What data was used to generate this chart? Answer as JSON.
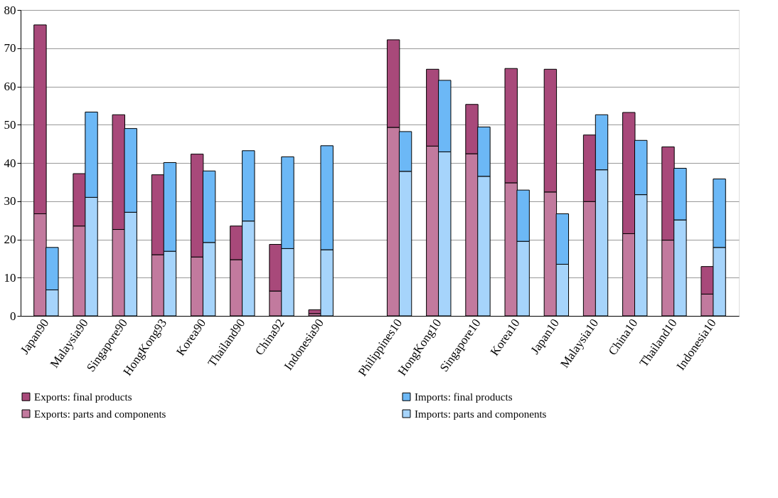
{
  "chart_data": {
    "type": "bar",
    "stacked": true,
    "categories": [
      "Japan90",
      null,
      "Malaysia90",
      null,
      "Singapore90",
      null,
      "HongKong93",
      null,
      "Korea90",
      null,
      "Thailand90",
      null,
      "China92",
      null,
      "Indonesia90",
      null,
      null,
      null,
      "Philippines10",
      null,
      "HongKong10",
      null,
      "Singapore10",
      null,
      "Korea10",
      null,
      "Japan10",
      null,
      "Malaysia10",
      null,
      "China10",
      null,
      "Thailand10",
      null,
      "Indonesia10",
      null
    ],
    "series": [
      {
        "name": "Exports: parts and components",
        "color": "#c27a9e",
        "values": [
          26.7,
          null,
          23.5,
          null,
          22.6,
          null,
          16.0,
          null,
          15.4,
          null,
          14.7,
          null,
          6.5,
          null,
          0.6,
          null,
          null,
          null,
          49.3,
          null,
          44.4,
          null,
          42.4,
          null,
          34.8,
          null,
          32.4,
          null,
          29.9,
          null,
          21.5,
          null,
          19.8,
          null,
          5.7,
          null
        ]
      },
      {
        "name": "Exports: final products",
        "color": "#a8497a",
        "values": [
          49.4,
          null,
          13.7,
          null,
          30.0,
          null,
          20.9,
          null,
          26.9,
          null,
          8.8,
          null,
          12.2,
          null,
          1.0,
          null,
          null,
          null,
          22.9,
          null,
          20.1,
          null,
          12.9,
          null,
          29.9,
          null,
          32.1,
          null,
          17.4,
          null,
          31.7,
          null,
          24.4,
          null,
          7.2,
          null
        ]
      },
      {
        "name": "Imports: parts and components",
        "color": "#a6d4fb",
        "values": [
          null,
          6.8,
          null,
          31.0,
          null,
          27.1,
          null,
          16.9,
          null,
          19.2,
          null,
          24.8,
          null,
          17.6,
          null,
          17.3,
          null,
          null,
          null,
          37.8,
          null,
          42.9,
          null,
          36.5,
          null,
          19.5,
          null,
          13.5,
          null,
          38.2,
          null,
          31.7,
          null,
          25.1,
          null,
          17.9
        ]
      },
      {
        "name": "Imports: final products",
        "color": "#6cb8f6",
        "values": [
          null,
          11.1,
          null,
          22.3,
          null,
          21.9,
          null,
          23.2,
          null,
          18.7,
          null,
          18.4,
          null,
          24.0,
          null,
          27.2,
          null,
          null,
          null,
          10.4,
          null,
          18.7,
          null,
          12.9,
          null,
          13.4,
          null,
          13.2,
          null,
          14.4,
          null,
          14.2,
          null,
          13.5,
          null,
          17.9
        ]
      }
    ],
    "ylim": [
      0,
      80
    ],
    "yticks": [
      0,
      10,
      20,
      30,
      40,
      50,
      60,
      70,
      80
    ],
    "grid": "y",
    "legend": "bottom"
  }
}
